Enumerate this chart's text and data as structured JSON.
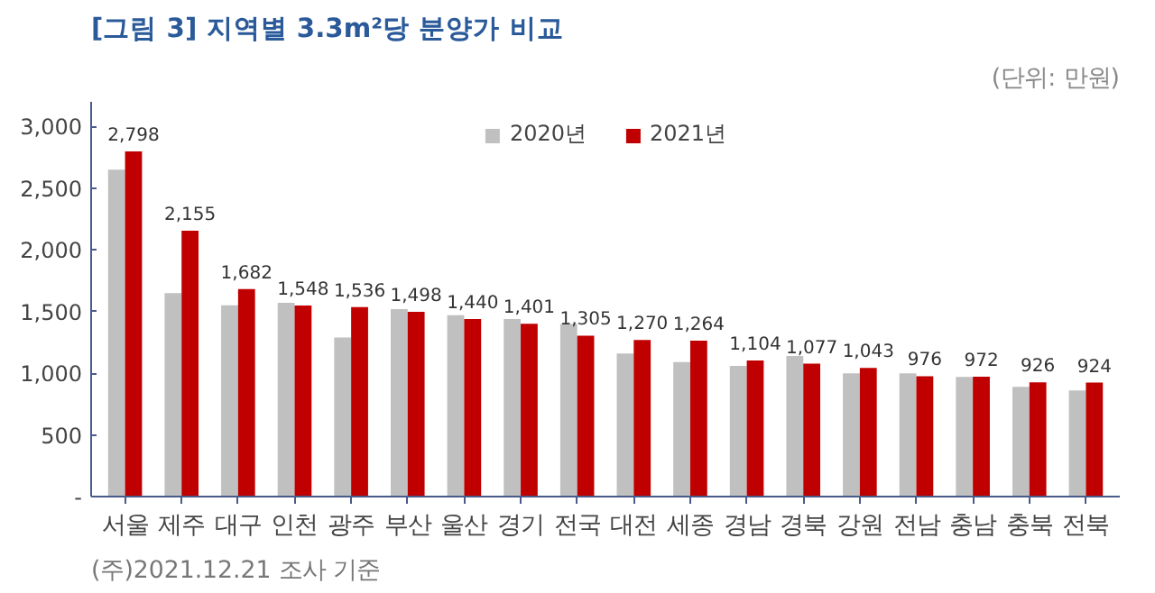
{
  "chart_data": {
    "type": "bar",
    "title": "[그림 3] 지역별 3.3m²당 분양가 비교",
    "subtitle": "(단위: 만원)",
    "annotations": [
      "(주)2021.12.21 조사 기준"
    ],
    "categories": [
      "서울",
      "제주",
      "대구",
      "인천",
      "광주",
      "부산",
      "울산",
      "경기",
      "전국",
      "대전",
      "세종",
      "경남",
      "경북",
      "강원",
      "전남",
      "충남",
      "충북",
      "전북"
    ],
    "series": [
      {
        "name": "2020년",
        "color": "#c0c0c0",
        "values": [
          2650,
          1650,
          1550,
          1570,
          1290,
          1520,
          1470,
          1440,
          1400,
          1160,
          1090,
          1060,
          1140,
          1000,
          1000,
          970,
          890,
          860
        ]
      },
      {
        "name": "2021년",
        "color": "#c00000",
        "values": [
          2798,
          2155,
          1682,
          1548,
          1536,
          1498,
          1440,
          1401,
          1305,
          1270,
          1264,
          1104,
          1077,
          1043,
          976,
          972,
          926,
          924
        ],
        "value_labels": [
          "2,798",
          "2,155",
          "1,682",
          "1,548",
          "1,536",
          "1,498",
          "1,440",
          "1,401",
          "1,305",
          "1,270",
          "1,264",
          "1,104",
          "1,077",
          "1,043",
          "976",
          "972",
          "926",
          "924"
        ]
      }
    ],
    "ylim": [
      0,
      3200
    ],
    "yticks": [
      {
        "value": 0,
        "label": "-"
      },
      {
        "value": 500,
        "label": "500"
      },
      {
        "value": 1000,
        "label": "1,000"
      },
      {
        "value": 1500,
        "label": "1,500"
      },
      {
        "value": 2000,
        "label": "2,000"
      },
      {
        "value": 2500,
        "label": "2,500"
      },
      {
        "value": 3000,
        "label": "3,000"
      }
    ],
    "grid": false,
    "legend": "top"
  }
}
